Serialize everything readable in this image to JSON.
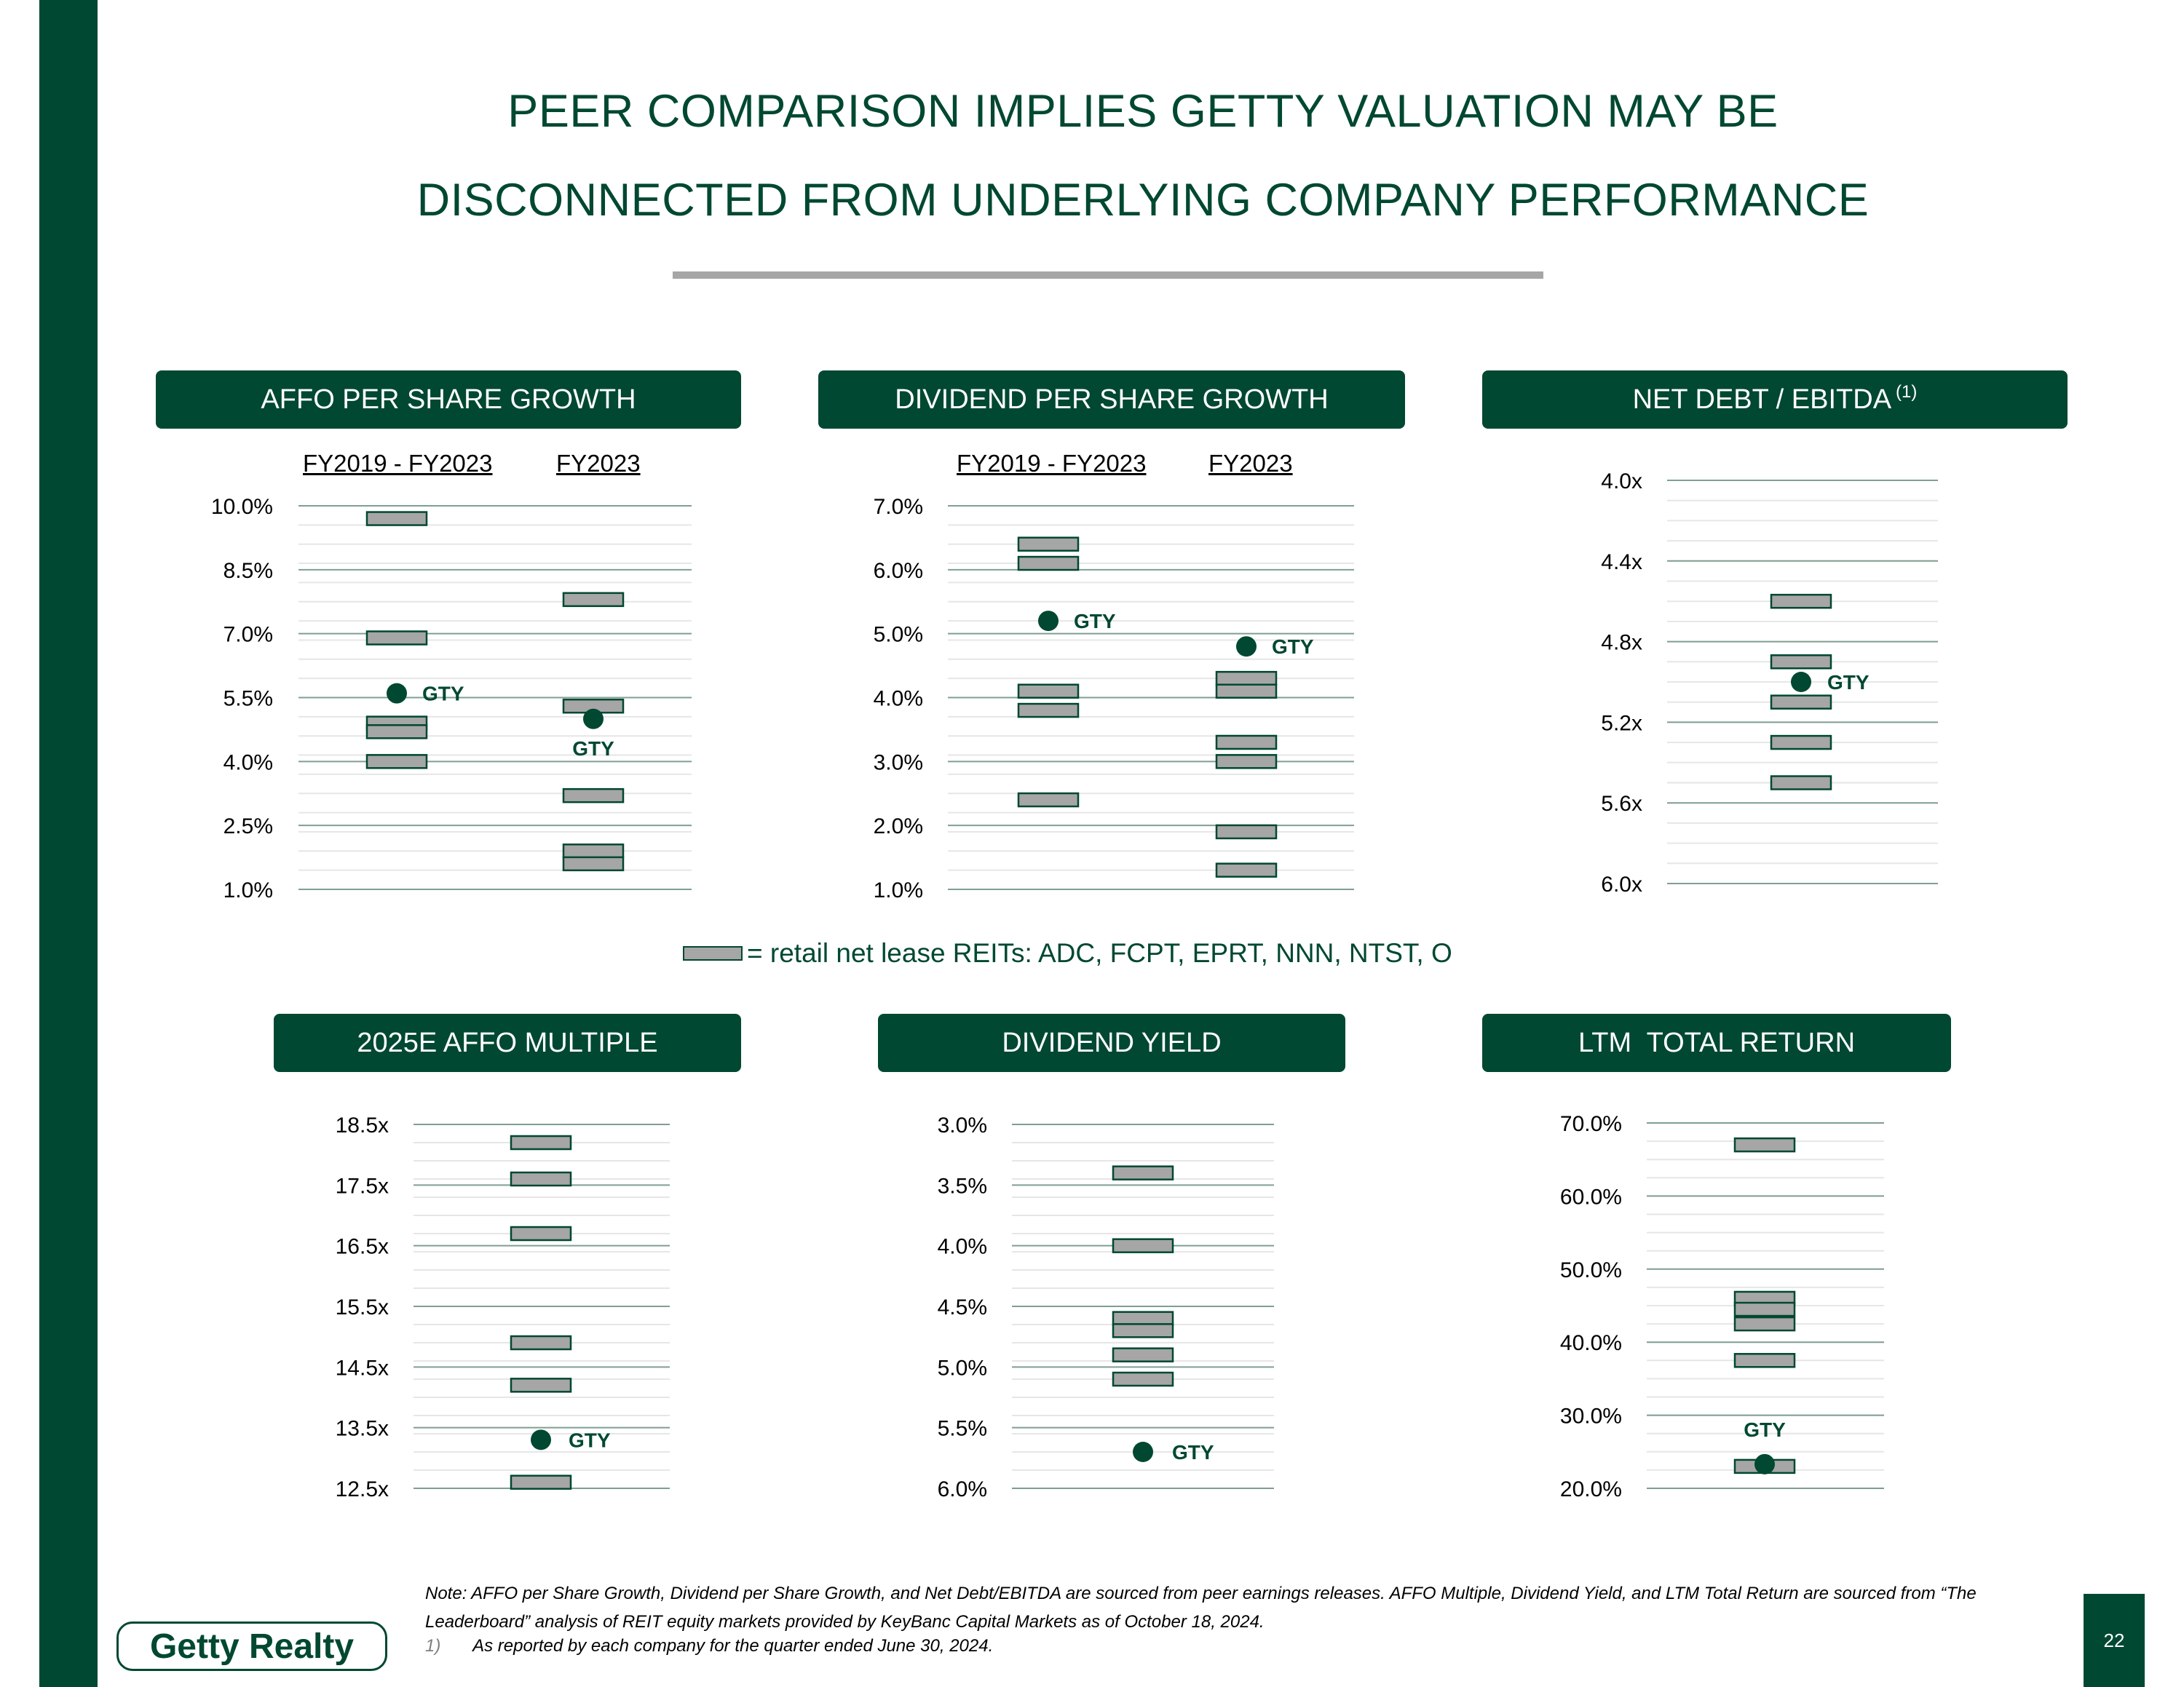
{
  "title_line1": "PEER COMPARISON IMPLIES GETTY VALUATION MAY BE",
  "title_line2": "DISCONNECTED FROM UNDERLYING COMPANY PERFORMANCE",
  "legend_text": "= retail net lease REITs: ADC, FCPT, EPRT, NNN, NTST, O",
  "note": "Note: AFFO per Share Growth, Dividend per Share Growth, and Net Debt/EBITDA are sourced from peer earnings releases.  AFFO Multiple, Dividend Yield, and LTM Total Return are sourced from “The Leaderboard” analysis of REIT equity markets provided by KeyBanc Capital Markets as of October 18, 2024.",
  "footnote_num": "1)",
  "footnote_text": "As reported by each company for the quarter ended June 30, 2024.",
  "logo_text": "Getty Realty",
  "page_number": "22",
  "colors": {
    "brand_green": "#004831",
    "peer_fill": "#a6a6a6",
    "rule_gray": "#a6a6a6"
  },
  "chart_data": [
    {
      "type": "scatter",
      "title": "AFFO PER SHARE GROWTH",
      "categories": [
        "FY2019 - FY2023",
        "FY2023"
      ],
      "ylim": [
        1.0,
        10.0
      ],
      "inverted": false,
      "tick_labels": [
        "10.0%",
        "8.5%",
        "7.0%",
        "5.5%",
        "4.0%",
        "2.5%",
        "1.0%"
      ],
      "tick_values": [
        10.0,
        8.5,
        7.0,
        5.5,
        4.0,
        2.5,
        1.0
      ],
      "series": [
        {
          "name": "retail net lease REITs",
          "marker": "bar",
          "values": [
            [
              9.7,
              6.9,
              4.9,
              4.7,
              4.0
            ],
            [
              7.8,
              5.3,
              3.2,
              1.9,
              1.6
            ]
          ]
        },
        {
          "name": "GTY",
          "marker": "dot",
          "values": [
            [
              5.6
            ],
            [
              5.0
            ]
          ]
        }
      ],
      "gty_label": "GTY"
    },
    {
      "type": "scatter",
      "title": "DIVIDEND PER SHARE GROWTH",
      "categories": [
        "FY2019 - FY2023",
        "FY2023"
      ],
      "ylim": [
        1.0,
        7.0
      ],
      "inverted": false,
      "tick_labels": [
        "7.0%",
        "6.0%",
        "5.0%",
        "4.0%",
        "3.0%",
        "2.0%",
        "1.0%"
      ],
      "tick_values": [
        7.0,
        6.0,
        5.0,
        4.0,
        3.0,
        2.0,
        1.0
      ],
      "series": [
        {
          "name": "retail net lease REITs",
          "marker": "bar",
          "values": [
            [
              6.4,
              6.1,
              4.1,
              3.8,
              2.4
            ],
            [
              4.3,
              4.1,
              3.3,
              3.0,
              1.9,
              1.3
            ]
          ]
        },
        {
          "name": "GTY",
          "marker": "dot",
          "values": [
            [
              5.2
            ],
            [
              4.8
            ]
          ]
        }
      ],
      "gty_label": "GTY"
    },
    {
      "type": "scatter",
      "title": "NET DEBT / EBITDA",
      "title_note": "(1)",
      "categories": [
        ""
      ],
      "ylim": [
        4.0,
        6.0
      ],
      "inverted": true,
      "tick_labels": [
        "4.0x",
        "4.4x",
        "4.8x",
        "5.2x",
        "5.6x",
        "6.0x"
      ],
      "tick_values": [
        4.0,
        4.4,
        4.8,
        5.2,
        5.6,
        6.0
      ],
      "series": [
        {
          "name": "retail net lease REITs",
          "marker": "bar",
          "values": [
            [
              4.6,
              4.9,
              5.1,
              5.3,
              5.5
            ]
          ]
        },
        {
          "name": "GTY",
          "marker": "dot",
          "values": [
            [
              5.0
            ]
          ]
        }
      ],
      "gty_label": "GTY"
    },
    {
      "type": "scatter",
      "title": "2025E AFFO MULTIPLE",
      "categories": [
        ""
      ],
      "ylim": [
        12.5,
        18.5
      ],
      "inverted": false,
      "tick_labels": [
        "18.5x",
        "17.5x",
        "16.5x",
        "15.5x",
        "14.5x",
        "13.5x",
        "12.5x"
      ],
      "tick_values": [
        18.5,
        17.5,
        16.5,
        15.5,
        14.5,
        13.5,
        12.5
      ],
      "series": [
        {
          "name": "retail net lease REITs",
          "marker": "bar",
          "values": [
            [
              18.2,
              17.6,
              16.7,
              14.9,
              14.2,
              12.6
            ]
          ]
        },
        {
          "name": "GTY",
          "marker": "dot",
          "values": [
            [
              13.3
            ]
          ]
        }
      ],
      "gty_label": "GTY"
    },
    {
      "type": "scatter",
      "title": "DIVIDEND YIELD",
      "categories": [
        ""
      ],
      "ylim": [
        3.0,
        6.0
      ],
      "inverted": true,
      "tick_labels": [
        "3.0%",
        "3.5%",
        "4.0%",
        "4.5%",
        "5.0%",
        "5.5%",
        "6.0%"
      ],
      "tick_values": [
        3.0,
        3.5,
        4.0,
        4.5,
        5.0,
        5.5,
        6.0
      ],
      "series": [
        {
          "name": "retail net lease REITs",
          "marker": "bar",
          "values": [
            [
              3.4,
              4.0,
              4.6,
              4.7,
              4.9,
              5.1
            ]
          ]
        },
        {
          "name": "GTY",
          "marker": "dot",
          "values": [
            [
              5.7
            ]
          ]
        }
      ],
      "gty_label": "GTY"
    },
    {
      "type": "scatter",
      "title": "LTM  TOTAL RETURN",
      "categories": [
        ""
      ],
      "ylim": [
        20.0,
        70.0
      ],
      "inverted": false,
      "tick_labels": [
        "70.0%",
        "60.0%",
        "50.0%",
        "40.0%",
        "30.0%",
        "20.0%"
      ],
      "tick_values": [
        70.0,
        60.0,
        50.0,
        40.0,
        30.0,
        20.0
      ],
      "series": [
        {
          "name": "retail net lease REITs",
          "marker": "bar",
          "values": [
            [
              67.0,
              46.0,
              44.5,
              42.5,
              37.5,
              23.0
            ]
          ]
        },
        {
          "name": "GTY",
          "marker": "dot",
          "values": [
            [
              23.3
            ]
          ]
        }
      ],
      "gty_label": "GTY"
    }
  ]
}
